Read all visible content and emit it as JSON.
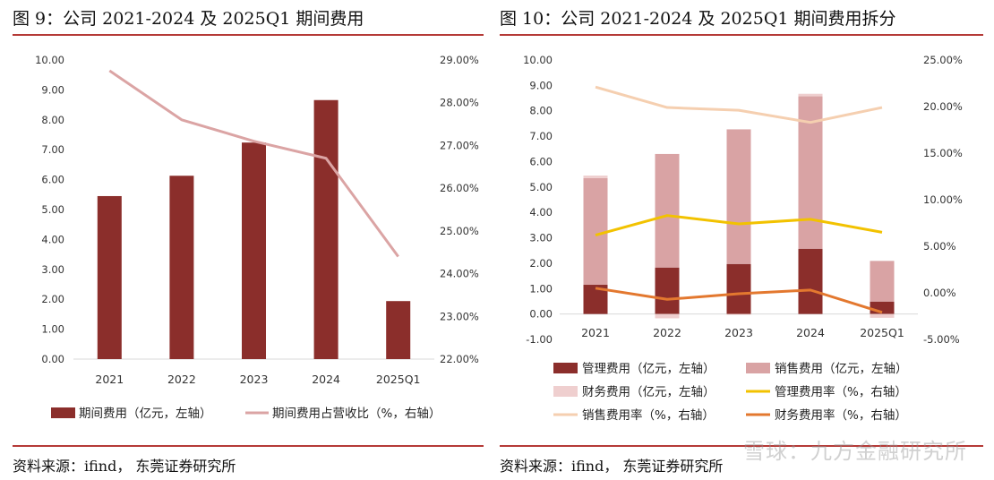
{
  "left": {
    "title": "图 9：公司 2021-2024 及 2025Q1 期间费用",
    "source": "资料来源：ifind， 东莞证券研究所"
  },
  "right": {
    "title": "图 10：公司 2021-2024 及 2025Q1 期间费用拆分",
    "source": "资料来源：ifind， 东莞证券研究所"
  },
  "watermark": "雪球：九方金融研究所",
  "colors": {
    "rule": "#b53a37",
    "dark_red": "#8b2e2b",
    "pink_line": "#dba4a4",
    "sales_bar": "#d9a3a4",
    "finance_bar": "#efcfcf",
    "admin_rate": "#f2c200",
    "sales_rate": "#f5cfb0",
    "finance_rate": "#e3782f"
  },
  "chart_data": [
    {
      "type": "bar+line",
      "categories": [
        "2021",
        "2022",
        "2023",
        "2024",
        "2025Q1"
      ],
      "y_left": {
        "min": 0,
        "max": 10,
        "step": 1,
        "ticks": [
          "0.00",
          "1.00",
          "2.00",
          "3.00",
          "4.00",
          "5.00",
          "6.00",
          "7.00",
          "8.00",
          "9.00",
          "10.00"
        ]
      },
      "y_right": {
        "min": 22,
        "max": 29,
        "step": 1,
        "ticks": [
          "22.00%",
          "23.00%",
          "24.00%",
          "25.00%",
          "26.00%",
          "27.00%",
          "28.00%",
          "29.00%"
        ]
      },
      "series": [
        {
          "name": "期间费用（亿元，左轴）",
          "kind": "bar",
          "axis": "left",
          "color": "#8b2e2b",
          "values": [
            5.45,
            6.13,
            7.24,
            8.66,
            1.94
          ]
        },
        {
          "name": "期间费用占营收比（%，右轴）",
          "kind": "line",
          "axis": "right",
          "color": "#dba4a4",
          "values": [
            28.75,
            27.6,
            27.1,
            26.7,
            24.4
          ]
        }
      ],
      "legend": [
        "期间费用（亿元，左轴）",
        "期间费用占营收比（%，右轴）"
      ]
    },
    {
      "type": "stacked-bar+line",
      "categories": [
        "2021",
        "2022",
        "2023",
        "2024",
        "2025Q1"
      ],
      "y_left": {
        "min": -1,
        "max": 10,
        "step": 1,
        "ticks": [
          "-1.00",
          "0.00",
          "1.00",
          "2.00",
          "3.00",
          "4.00",
          "5.00",
          "6.00",
          "7.00",
          "8.00",
          "9.00",
          "10.00"
        ]
      },
      "y_right": {
        "min": -5,
        "max": 25,
        "step": 5,
        "ticks": [
          "-5.00%",
          "0.00%",
          "5.00%",
          "10.00%",
          "15.00%",
          "20.00%",
          "25.00%"
        ]
      },
      "series": [
        {
          "name": "管理费用（亿元，左轴）",
          "kind": "bar",
          "axis": "left",
          "color": "#8b2e2b",
          "values": [
            1.15,
            1.83,
            1.97,
            2.57,
            0.49
          ]
        },
        {
          "name": "销售费用（亿元，左轴）",
          "kind": "bar",
          "axis": "left",
          "color": "#d9a3a4",
          "values": [
            4.2,
            4.47,
            5.3,
            6.0,
            1.6
          ]
        },
        {
          "name": "财务费用（亿元，左轴）",
          "kind": "bar",
          "axis": "left",
          "color": "#efcfcf",
          "values": [
            0.1,
            -0.17,
            -0.03,
            0.1,
            -0.15
          ]
        },
        {
          "name": "管理费用率（%，右轴）",
          "kind": "line",
          "axis": "right",
          "color": "#f2c200",
          "values": [
            6.2,
            8.3,
            7.4,
            7.9,
            6.5
          ]
        },
        {
          "name": "销售费用率（%，右轴）",
          "kind": "line",
          "axis": "right",
          "color": "#f5cfb0",
          "values": [
            22.1,
            19.9,
            19.6,
            18.3,
            19.9
          ]
        },
        {
          "name": "财务费用率（%，右轴）",
          "kind": "line",
          "axis": "right",
          "color": "#e3782f",
          "values": [
            0.5,
            -0.7,
            -0.1,
            0.3,
            -2.1
          ]
        }
      ],
      "legend": [
        "管理费用（亿元，左轴）",
        "销售费用（亿元，左轴）",
        "财务费用（亿元，左轴）",
        "管理费用率（%，右轴）",
        "销售费用率（%，右轴）",
        "财务费用率（%，右轴）"
      ]
    }
  ]
}
